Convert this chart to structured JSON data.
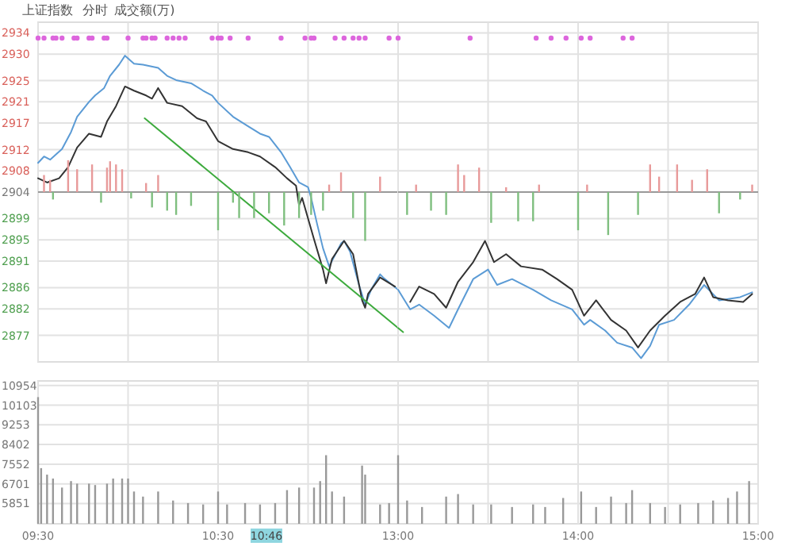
{
  "chart_data": [
    {
      "type": "line",
      "title": "上证指数",
      "subtitle": "分时",
      "annotations": [
        "成交额(万)"
      ],
      "xlim": [
        9.5,
        11.5
      ],
      "ylim": [
        2872,
        2936
      ],
      "xticks": [
        9.5,
        10,
        10.5,
        11
      ],
      "yticks": [
        2934,
        2930,
        2925,
        2921,
        2917,
        2912,
        2908,
        2904,
        2899,
        2895,
        2891,
        2886,
        2882,
        2877
      ],
      "tick_labels": "y",
      "grid": true,
      "ref_lines": [
        {
          "axis": "y",
          "value": 2904,
          "color": "#999999"
        }
      ],
      "series": [
        {
          "color": "#5b9bd5",
          "x": [
            9.5,
            9.533,
            9.567,
            9.633,
            9.683,
            9.717,
            9.783,
            9.817,
            9.867,
            9.9,
            9.95,
            9.983,
            10.033,
            10.083,
            10.167,
            10.217,
            10.267,
            10.35,
            10.417,
            10.467,
            10.5,
            10.583,
            10.667,
            10.733,
            10.783,
            10.85,
            10.9,
            10.95,
            11,
            11.017,
            11.05,
            11.083,
            11.117,
            11.183,
            11.2,
            11.233,
            11.283,
            11.317,
            11.35,
            11.4,
            11.417,
            11.5
          ],
          "values": [
            2909.5,
            2910.7,
            2910.1,
            2912.1,
            2915.3,
            2918.2,
            2921.0,
            2922.2,
            2923.6,
            2925.9,
            2928.0,
            2929.7,
            2928.2,
            2928.0,
            2927.4,
            2925.9,
            2925.1,
            2924.5,
            2923.1,
            2922.2,
            2920.8,
            2918.2,
            2916.4,
            2915.0,
            2914.4,
            2911.5,
            2908.7,
            2905.8,
            2904.9,
            2902.9,
            2898.0,
            2893.4,
            2890.0,
            2894.3,
            2894.8,
            2892.8,
            2886.5,
            2882.8,
            2885.6,
            2888.5,
            2887.9,
            2885.6
          ]
        },
        {
          "color": "#333333",
          "x": [
            9.5,
            9.55,
            9.617,
            9.667,
            9.717,
            9.783,
            9.85,
            9.883,
            9.933,
            9.983,
            10.033,
            10.1,
            10.133,
            10.167,
            10.217,
            10.3,
            10.383,
            10.433,
            10.5,
            10.583,
            10.667,
            10.733,
            10.817,
            10.883,
            10.933,
            10.95,
            10.967,
            11.033,
            11.083,
            11.1,
            11.133,
            11.2,
            11.25,
            11.3,
            11.317,
            11.333,
            11.4,
            11.483
          ],
          "values": [
            2906.6,
            2905.8,
            2906.6,
            2908.7,
            2912.4,
            2915.0,
            2914.4,
            2917.3,
            2920.2,
            2923.9,
            2923.1,
            2922.2,
            2921.6,
            2923.6,
            2920.8,
            2920.2,
            2917.9,
            2917.3,
            2913.6,
            2912.1,
            2911.5,
            2910.7,
            2908.7,
            2906.6,
            2905.2,
            2901.5,
            2902.9,
            2895.1,
            2889.4,
            2886.8,
            2891.4,
            2894.8,
            2892.3,
            2883.6,
            2882.2,
            2884.8,
            2887.9,
            2886.2
          ]
        },
        {
          "color": "#3daa3d",
          "x": [
            10.092,
            11.5
          ],
          "values": [
            2917.9,
            2878.4
          ]
        },
        {
          "type": "bar",
          "x": [
            9.533,
            9.567,
            9.583,
            9.667,
            9.717,
            9.8,
            9.85,
            9.883,
            9.9,
            9.933,
            9.967,
            10.017,
            10.1,
            10.133,
            10.167,
            10.217,
            10.267,
            10.35,
            10.5,
            10.583,
            10.617,
            10.7,
            10.783,
            10.867,
            10.95,
            11.017,
            11.083,
            11.117,
            11.183,
            11.25,
            11.317,
            11.4
          ],
          "values": [
            3.2,
            2.3,
            -1.4,
            6.0,
            4.3,
            5.2,
            -2.0,
            4.6,
            5.8,
            5.2,
            4.3,
            -1.2,
            1.7,
            -2.9,
            3.2,
            -3.5,
            -4.3,
            -2.6,
            -7.2,
            -2.0,
            -4.9,
            -4.9,
            -4.0,
            -6.3,
            -4.9,
            -4.3,
            -3.5,
            1.4,
            3.7,
            -4.9,
            -9.2,
            2.9
          ],
          "base": [
            2904,
            2904,
            2904,
            2904,
            2904,
            2904,
            2904,
            2904,
            2904,
            2904,
            2904,
            2904,
            2904,
            2904,
            2904,
            2904,
            2904,
            2904,
            2904,
            2904,
            2904,
            2904,
            2904,
            2904,
            2904,
            2904,
            2904,
            2904,
            2904,
            2904,
            2904,
            2904
          ],
          "colors": [
            "#e89a9a",
            "#e89a9a",
            "#7fbf7f",
            "#e89a9a",
            "#e89a9a",
            "#e89a9a",
            "#7fbf7f",
            "#e89a9a",
            "#e89a9a",
            "#e89a9a",
            "#e89a9a",
            "#7fbf7f",
            "#e89a9a",
            "#7fbf7f",
            "#e89a9a",
            "#7fbf7f",
            "#7fbf7f",
            "#7fbf7f",
            "#7fbf7f",
            "#7fbf7f",
            "#7fbf7f",
            "#7fbf7f",
            "#7fbf7f",
            "#7fbf7f",
            "#7fbf7f",
            "#7fbf7f",
            "#7fbf7f",
            "#e89a9a",
            "#e89a9a",
            "#7fbf7f",
            "#7fbf7f",
            "#e89a9a"
          ]
        },
        {
          "type": "scatter",
          "marker": "circle",
          "color": "#dd66dd",
          "x": [
            9.5,
            9.533,
            9.583,
            9.6,
            9.633,
            9.7,
            9.717,
            9.783,
            9.8,
            9.867,
            9.883,
            10,
            10.083,
            10.1,
            10.133,
            10.15,
            10.217,
            10.25,
            10.283,
            10.317,
            10.467,
            10.5,
            10.517,
            10.567,
            10.667,
            10.85,
            10.983,
            11.017,
            11.033,
            11.15,
            11.2,
            11.25,
            11.283,
            11.317,
            11.45
          ],
          "values": [
            2933,
            2933,
            2933,
            2933,
            2933,
            2933,
            2933,
            2933,
            2933,
            2933,
            2933,
            2933,
            2933,
            2933,
            2933,
            2933,
            2933,
            2933,
            2933,
            2933,
            2933,
            2933,
            2933,
            2933,
            2933,
            2933,
            2933,
            2933,
            2933,
            2933,
            2933,
            2933,
            2933,
            2933,
            2933
          ]
        }
      ]
    },
    {
      "type": "line",
      "xlim": [
        13,
        15
      ],
      "ylim": [
        2872,
        2936
      ],
      "xticks": [
        13,
        13.5,
        14,
        14.5,
        15
      ],
      "yticks": [
        2934,
        2930,
        2925,
        2921,
        2917,
        2912,
        2908,
        2904,
        2899,
        2895,
        2891,
        2886,
        2882,
        2877
      ],
      "tick_labels": false,
      "grid": true,
      "ref_lines": [
        {
          "axis": "y",
          "value": 2904,
          "color": "#999999"
        }
      ],
      "series": [
        {
          "color": "#5b9bd5",
          "x": [
            13,
            13.067,
            13.117,
            13.2,
            13.283,
            13.333,
            13.417,
            13.5,
            13.55,
            13.633,
            13.75,
            13.85,
            13.967,
            14.033,
            14.067,
            14.15,
            14.217,
            14.3,
            14.35,
            14.4,
            14.45,
            14.533,
            14.617,
            14.7,
            14.783,
            14.9,
            14.967
          ],
          "values": [
            2885.6,
            2881.9,
            2882.8,
            2880.7,
            2878.4,
            2881.9,
            2887.6,
            2889.4,
            2886.5,
            2887.6,
            2885.6,
            2883.6,
            2881.9,
            2879.0,
            2879.9,
            2877.9,
            2875.6,
            2874.7,
            2872.7,
            2875.0,
            2879.0,
            2879.9,
            2882.8,
            2886.5,
            2883.6,
            2884.2,
            2885.1
          ]
        },
        {
          "color": "#333333",
          "x": [
            13.067,
            13.117,
            13.2,
            13.267,
            13.333,
            13.417,
            13.483,
            13.533,
            13.6,
            13.683,
            13.8,
            13.883,
            13.967,
            14.033,
            14.1,
            14.183,
            14.267,
            14.333,
            14.4,
            14.483,
            14.567,
            14.65,
            14.7,
            14.75,
            14.833,
            14.917,
            14.967
          ],
          "values": [
            2883.3,
            2886.2,
            2884.8,
            2882.2,
            2887.1,
            2890.8,
            2894.8,
            2890.8,
            2892.3,
            2890.0,
            2889.4,
            2887.6,
            2885.6,
            2880.7,
            2883.6,
            2879.9,
            2877.9,
            2874.7,
            2877.9,
            2880.7,
            2883.3,
            2884.8,
            2887.9,
            2884.2,
            2883.6,
            2883.3,
            2884.8
          ]
        },
        {
          "color": "#3daa3d",
          "x": [
            13,
            13.028
          ],
          "values": [
            2878.4,
            2877.6
          ]
        },
        {
          "type": "bar",
          "x": [
            13.05,
            13.1,
            13.183,
            13.267,
            13.333,
            13.367,
            13.45,
            13.517,
            13.6,
            13.667,
            13.75,
            13.783,
            14,
            14.05,
            14.167,
            14.333,
            14.4,
            14.45,
            14.55,
            14.633,
            14.717,
            14.783,
            14.9,
            14.967
          ],
          "values": [
            -4.3,
            1.4,
            -3.5,
            -4.3,
            5.2,
            3.2,
            4.6,
            -5.8,
            0.9,
            -5.5,
            -5.5,
            1.4,
            -7.2,
            1.4,
            -8.1,
            -4.3,
            5.2,
            2.9,
            5.2,
            2.3,
            4.3,
            -4.0,
            -1.4,
            1.4
          ],
          "base": [
            2904,
            2904,
            2904,
            2904,
            2904,
            2904,
            2904,
            2904,
            2904,
            2904,
            2904,
            2904,
            2904,
            2904,
            2904,
            2904,
            2904,
            2904,
            2904,
            2904,
            2904,
            2904,
            2904,
            2904
          ],
          "colors": [
            "#7fbf7f",
            "#e89a9a",
            "#7fbf7f",
            "#7fbf7f",
            "#e89a9a",
            "#e89a9a",
            "#e89a9a",
            "#7fbf7f",
            "#e89a9a",
            "#7fbf7f",
            "#7fbf7f",
            "#e89a9a",
            "#7fbf7f",
            "#e89a9a",
            "#7fbf7f",
            "#7fbf7f",
            "#e89a9a",
            "#e89a9a",
            "#e89a9a",
            "#e89a9a",
            "#e89a9a",
            "#7fbf7f",
            "#7fbf7f",
            "#e89a9a"
          ]
        },
        {
          "type": "scatter",
          "marker": "circle",
          "color": "#dd66dd",
          "x": [
            13,
            13.4,
            13.767,
            13.85,
            13.933,
            14.017,
            14.067,
            14.25,
            14.3
          ],
          "values": [
            2933,
            2933,
            2933,
            2933,
            2933,
            2933,
            2933,
            2933,
            2933
          ]
        }
      ]
    },
    {
      "type": "bar",
      "xlim": [
        9.5,
        11.5
      ],
      "ylim": [
        4975,
        11150
      ],
      "xticks": [
        {
          "value": 9.5,
          "label": "09:30"
        },
        {
          "value": 10,
          "label": null
        },
        {
          "value": 10.5,
          "label": "10:30"
        },
        {
          "value": 11,
          "label": null
        }
      ],
      "yticks": [
        10954,
        10103,
        9253,
        8402,
        7552,
        6701,
        5851
      ],
      "grid": true,
      "annotations": [
        "10:46"
      ],
      "series": [
        {
          "color": "#999999",
          "x": [
            9.5,
            9.517,
            9.55,
            9.583,
            9.633,
            9.683,
            9.717,
            9.783,
            9.817,
            9.883,
            9.917,
            9.967,
            10,
            10.033,
            10.083,
            10.167,
            10.25,
            10.333,
            10.417,
            10.5,
            10.55,
            10.65,
            10.733,
            10.817,
            10.883,
            10.95,
            11.033,
            11.067,
            11.1,
            11.133,
            11.2,
            11.3,
            11.317,
            11.4,
            11.45
          ],
          "values": [
            10450,
            7380,
            7100,
            6930,
            6540,
            6820,
            6710,
            6710,
            6650,
            6710,
            6930,
            6930,
            6930,
            6370,
            6150,
            6370,
            5980,
            5870,
            5810,
            6370,
            5810,
            5870,
            5810,
            5870,
            6430,
            6540,
            6540,
            6820,
            7940,
            6370,
            6150,
            7490,
            7100,
            5810,
            5870
          ]
        }
      ]
    },
    {
      "type": "bar",
      "xlim": [
        13,
        15
      ],
      "ylim": [
        4975,
        11150
      ],
      "xticks": [
        {
          "value": 13,
          "label": "13:00"
        },
        {
          "value": 13.5,
          "label": null
        },
        {
          "value": 14,
          "label": "14:00"
        },
        {
          "value": 14.5,
          "label": null
        },
        {
          "value": 15,
          "label": "15:00"
        }
      ],
      "yticks": [
        10954,
        10103,
        9253,
        8402,
        7552,
        6701,
        5851
      ],
      "grid": true,
      "tick_labels": "x",
      "series": [
        {
          "color": "#999999",
          "x": [
            13,
            13.05,
            13.133,
            13.267,
            13.333,
            13.417,
            13.517,
            13.633,
            13.75,
            13.817,
            13.917,
            14.017,
            14.1,
            14.183,
            14.267,
            14.3,
            14.4,
            14.483,
            14.567,
            14.667,
            14.75,
            14.833,
            14.883,
            14.95
          ],
          "values": [
            7940,
            5980,
            5700,
            6150,
            6260,
            5810,
            5810,
            5700,
            5810,
            5700,
            6090,
            6370,
            5700,
            6150,
            5870,
            6430,
            5870,
            5700,
            5810,
            5870,
            5980,
            6090,
            6370,
            6820
          ]
        }
      ]
    }
  ]
}
